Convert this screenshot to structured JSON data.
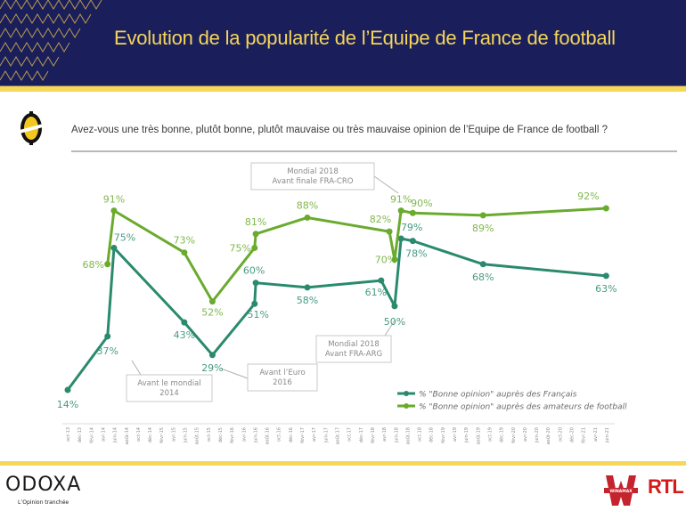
{
  "header": {
    "title": "Evolution de la popularité de l’Equipe de France de football"
  },
  "question": {
    "text": "Avez-vous une très bonne, plutôt bonne, plutôt mauvaise ou très mauvaise opinion de l’Equipe de France de football ?"
  },
  "footer": {
    "brand": "ODOXA",
    "tagline": "L’Opinion tranchée",
    "partner_winamax": "WINAMAX",
    "partner_rtl": "RTL"
  },
  "colors": {
    "header_bg": "#1a1f5c",
    "accent_yellow": "#f7d75a",
    "series_francais": "#2a8a6e",
    "series_amateurs": "#6aab2e"
  },
  "chart_data": {
    "type": "line",
    "title": "Evolution de la popularité de l’Equipe de France de football",
    "xlabel": "",
    "ylabel": "",
    "ylim": [
      0,
      100
    ],
    "grid": false,
    "legend_position": "bottom-right",
    "x_ticks": [
      "oct-13",
      "déc-13",
      "févr-14",
      "avr-14",
      "juin-14",
      "août-14",
      "oct-14",
      "déc-14",
      "févr-15",
      "avr-15",
      "juin-15",
      "août-15",
      "oct-15",
      "déc-15",
      "févr-16",
      "avr-16",
      "juin-16",
      "août-16",
      "oct-16",
      "déc-16",
      "févr-17",
      "avr-17",
      "juin-17",
      "août-17",
      "oct-17",
      "déc-17",
      "févr-18",
      "avr-18",
      "juin-18",
      "août-18",
      "oct-18",
      "déc-18",
      "févr-19",
      "avr-19",
      "juin-19",
      "août-19",
      "oct-19",
      "déc-19",
      "févr-20",
      "avr-20",
      "juin-20",
      "août-20",
      "oct-20",
      "déc-20",
      "févr-21",
      "avr-21",
      "juin-21"
    ],
    "series": [
      {
        "name": "% \"Bonne opinion\" auprès des Français",
        "color": "#2a8a6e",
        "points": [
          {
            "t": 0.0,
            "y": 14,
            "label": "14%"
          },
          {
            "t": 3.4,
            "y": 37,
            "label": "37%"
          },
          {
            "t": 3.95,
            "y": 75,
            "label": "75%"
          },
          {
            "t": 9.95,
            "y": 43,
            "label": "43%"
          },
          {
            "t": 12.35,
            "y": 29,
            "label": "29%"
          },
          {
            "t": 15.95,
            "y": 51,
            "label": "51%"
          },
          {
            "t": 16.05,
            "y": 60,
            "label": "60%"
          },
          {
            "t": 20.45,
            "y": 58,
            "label": "58%"
          },
          {
            "t": 26.75,
            "y": 61,
            "label": "61%"
          },
          {
            "t": 27.9,
            "y": 50,
            "label": "50%"
          },
          {
            "t": 28.45,
            "y": 79,
            "label": "79%"
          },
          {
            "t": 29.45,
            "y": 78,
            "label": "78%"
          },
          {
            "t": 35.45,
            "y": 68,
            "label": "68%"
          },
          {
            "t": 45.95,
            "y": 63,
            "label": "63%"
          }
        ]
      },
      {
        "name": "% \"Bonne opinion\" auprès des amateurs de football",
        "color": "#6aab2e",
        "points": [
          {
            "t": 3.4,
            "y": 68,
            "label": "68%"
          },
          {
            "t": 3.95,
            "y": 91,
            "label": "91%"
          },
          {
            "t": 9.95,
            "y": 73,
            "label": "73%"
          },
          {
            "t": 12.35,
            "y": 52,
            "label": "52%"
          },
          {
            "t": 15.95,
            "y": 75,
            "label": "75%"
          },
          {
            "t": 16.05,
            "y": 81,
            "label": "81%"
          },
          {
            "t": 20.45,
            "y": 88,
            "label": "88%"
          },
          {
            "t": 27.45,
            "y": 82,
            "label": "82%"
          },
          {
            "t": 27.9,
            "y": 70,
            "label": "70%"
          },
          {
            "t": 28.45,
            "y": 91,
            "label": "91%"
          },
          {
            "t": 29.45,
            "y": 90,
            "label": "90%"
          },
          {
            "t": 35.45,
            "y": 89,
            "label": "89%"
          },
          {
            "t": 45.95,
            "y": 92,
            "label": "92%"
          }
        ]
      }
    ],
    "annotations": [
      {
        "id": "mondial-2014",
        "lines": [
          "Avant le mondial",
          "2014"
        ]
      },
      {
        "id": "euro-2016",
        "lines": [
          "Avant l’Euro",
          "2016"
        ]
      },
      {
        "id": "mondial-2018-arg",
        "lines": [
          "Mondial 2018",
          "Avant FRA-ARG"
        ]
      },
      {
        "id": "mondial-2018-cro",
        "lines": [
          "Mondial 2018",
          "Avant finale FRA-CRO"
        ]
      }
    ]
  }
}
